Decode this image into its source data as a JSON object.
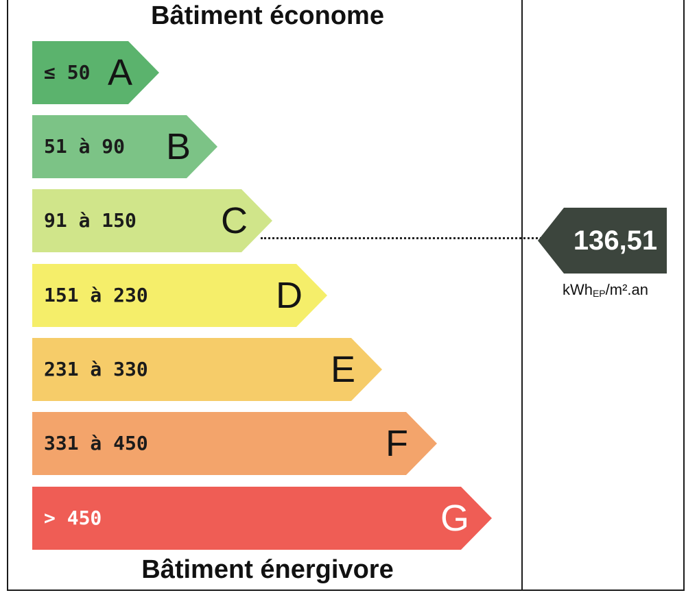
{
  "header": {
    "title": "Bâtiment économe"
  },
  "footer": {
    "title": "Bâtiment énergivore"
  },
  "classes": [
    {
      "letter": "A",
      "range": "≤ 50",
      "color": "#5bb36d"
    },
    {
      "letter": "B",
      "range": "51 à 90",
      "color": "#7cc386"
    },
    {
      "letter": "C",
      "range": "91 à 150",
      "color": "#d0e58a"
    },
    {
      "letter": "D",
      "range": "151 à 230",
      "color": "#f5ee6a"
    },
    {
      "letter": "E",
      "range": "231 à 330",
      "color": "#f6cc69"
    },
    {
      "letter": "F",
      "range": "331 à 450",
      "color": "#f3a46b"
    },
    {
      "letter": "G",
      "range": "> 450",
      "color": "#ef5d55"
    }
  ],
  "rating": {
    "value": "136,51",
    "class": "C",
    "unit_main": "kWh",
    "unit_sub": "EP",
    "unit_rest": "/m².an",
    "marker_color": "#3c453d"
  }
}
